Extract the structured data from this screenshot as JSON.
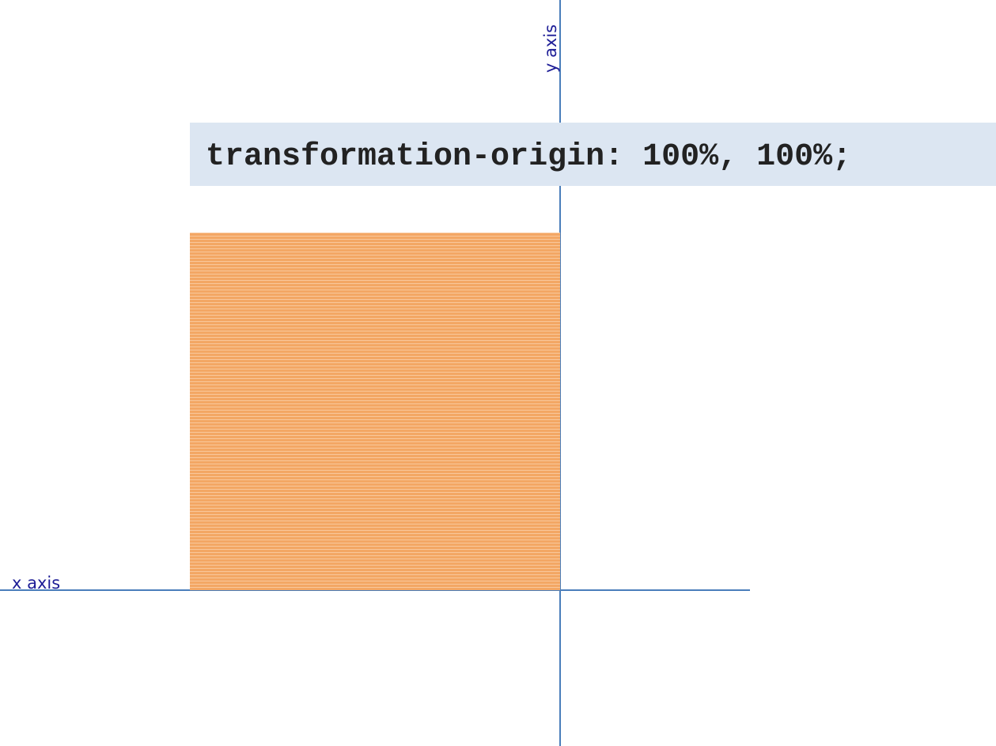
{
  "axes": {
    "y_label": "y axis",
    "x_label": "x axis"
  },
  "code": "transformation-origin: 100%, 100%;"
}
